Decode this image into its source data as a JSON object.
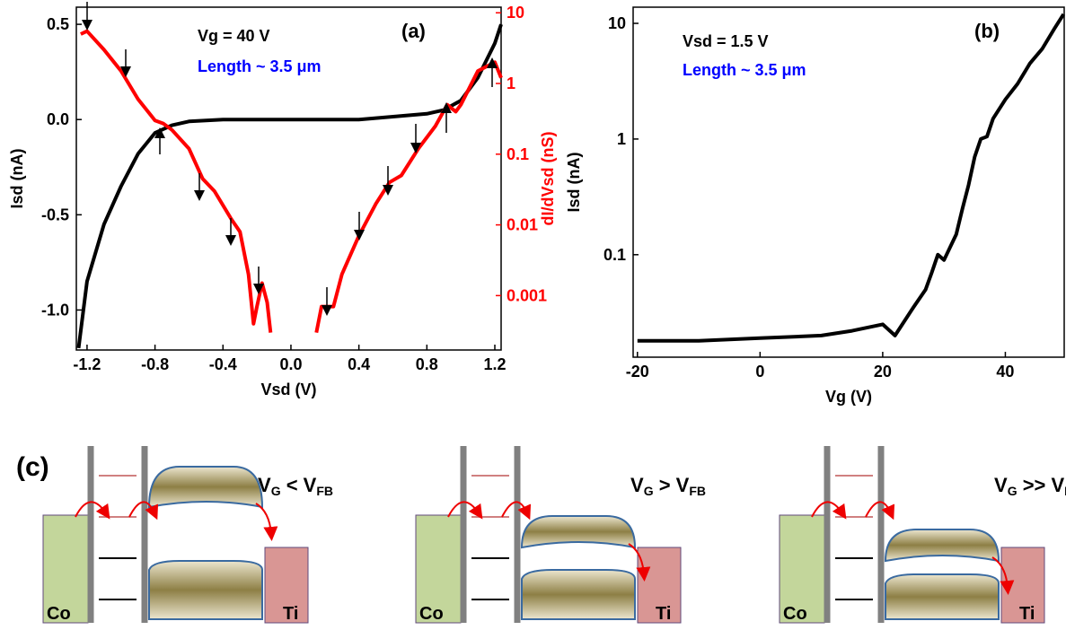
{
  "chart_data": [
    {
      "type": "line",
      "panel_label": "(a)",
      "annotations": [
        "Vg = 40 V",
        "Length ~ 3.5 μm"
      ],
      "x_label": "Vsd (V)",
      "y_label": "Isd (nA)",
      "y2_label": "dI/dVsd (nS)",
      "xlim": [
        -1.263,
        1.237
      ],
      "xticks": [
        -1.2,
        -0.8,
        -0.4,
        {
          "value": 0,
          "label": "0.0"
        },
        0.4,
        0.8,
        1.2
      ],
      "ylim": [
        -1.21,
        0.59
      ],
      "yticks": [
        {
          "value": -1,
          "label": "-1.0"
        },
        -0.5,
        {
          "value": 0,
          "label": "0.0"
        },
        0.5
      ],
      "y2lim": [
        0.00017,
        12
      ],
      "y2ticks": [
        0.001,
        0.01,
        0.1,
        1,
        10
      ],
      "y2log": true,
      "y2color": "#ff0000",
      "series": [
        {
          "color": "#000000",
          "x": [
            -1.25,
            -1.2,
            -1.1,
            -1.0,
            -0.9,
            -0.8,
            -0.7,
            -0.6,
            -0.4,
            0,
            0.4,
            0.8,
            0.9,
            1.0,
            1.1,
            1.2,
            1.237
          ],
          "values": [
            -1.2,
            -0.85,
            -0.55,
            -0.35,
            -0.18,
            -0.07,
            -0.03,
            -0.01,
            0,
            0,
            0,
            0.03,
            0.05,
            0.1,
            0.22,
            0.4,
            0.5
          ]
        },
        {
          "color": "#ff0000",
          "axis": "y2",
          "x": [
            -1.237,
            -1.2,
            -1.1,
            -1.0,
            -0.9,
            -0.8,
            -0.75,
            -0.7,
            -0.6,
            -0.52,
            -0.45,
            -0.35,
            -0.3,
            -0.25,
            -0.22,
            -0.2,
            -0.17,
            -0.14,
            -0.12,
            0,
            0.15,
            0.18,
            0.25,
            0.3,
            0.4,
            0.5,
            0.58,
            0.65,
            0.75,
            0.85,
            0.92,
            0.97,
            1.0,
            1.1,
            1.2,
            1.237
          ],
          "values": [
            5,
            5.5,
            3,
            1.5,
            0.6,
            0.3,
            0.27,
            0.22,
            0.12,
            0.045,
            0.03,
            0.012,
            0.008,
            0.002,
            0.0004,
            0.0007,
            0.0015,
            0.0008,
            0.0003,
            null,
            0.0003,
            0.0007,
            0.0007,
            0.002,
            0.007,
            0.02,
            0.04,
            0.05,
            0.12,
            0.25,
            0.5,
            0.4,
            0.5,
            1.5,
            2,
            1.2
          ]
        }
      ]
    },
    {
      "type": "line",
      "panel_label": "(b)",
      "annotations": [
        "Vsd = 1.5 V",
        "Length ~ 3.5 μm"
      ],
      "x_label": "Vg (V)",
      "y_label": "Isd (nA)",
      "xlim": [
        -20.7,
        49.6
      ],
      "xticks": [
        -20,
        0,
        20,
        40
      ],
      "ylim": [
        0.013,
        13.8
      ],
      "yticks": [
        0.1,
        1,
        10
      ],
      "ylog": true,
      "series": [
        {
          "color": "#000000",
          "x": [
            -20,
            -10,
            0,
            10,
            15,
            20,
            22,
            25,
            27,
            28,
            29,
            30,
            32,
            33,
            34,
            35,
            36,
            37,
            38,
            40,
            42,
            44,
            46,
            48,
            49.5
          ],
          "values": [
            0.018,
            0.018,
            0.019,
            0.02,
            0.022,
            0.025,
            0.02,
            0.035,
            0.05,
            0.07,
            0.1,
            0.09,
            0.15,
            0.25,
            0.4,
            0.7,
            1.0,
            1.05,
            1.5,
            2.2,
            3,
            4.5,
            6,
            9,
            12
          ]
        }
      ]
    }
  ],
  "diagram": {
    "panel_label": "(c)",
    "panels": [
      {
        "left": "Co",
        "right": "Ti",
        "v": "V",
        "v_sub": "G",
        "relation": " < V",
        "fb_sub": "FB"
      },
      {
        "left": "Co",
        "right": "Ti",
        "v": "V",
        "v_sub": "G",
        "relation": " > V",
        "fb_sub": "FB"
      },
      {
        "left": "Co",
        "right": "Ti",
        "v": "V",
        "v_sub": "G",
        "relation": " >> V",
        "fb_sub": "FB"
      }
    ]
  }
}
